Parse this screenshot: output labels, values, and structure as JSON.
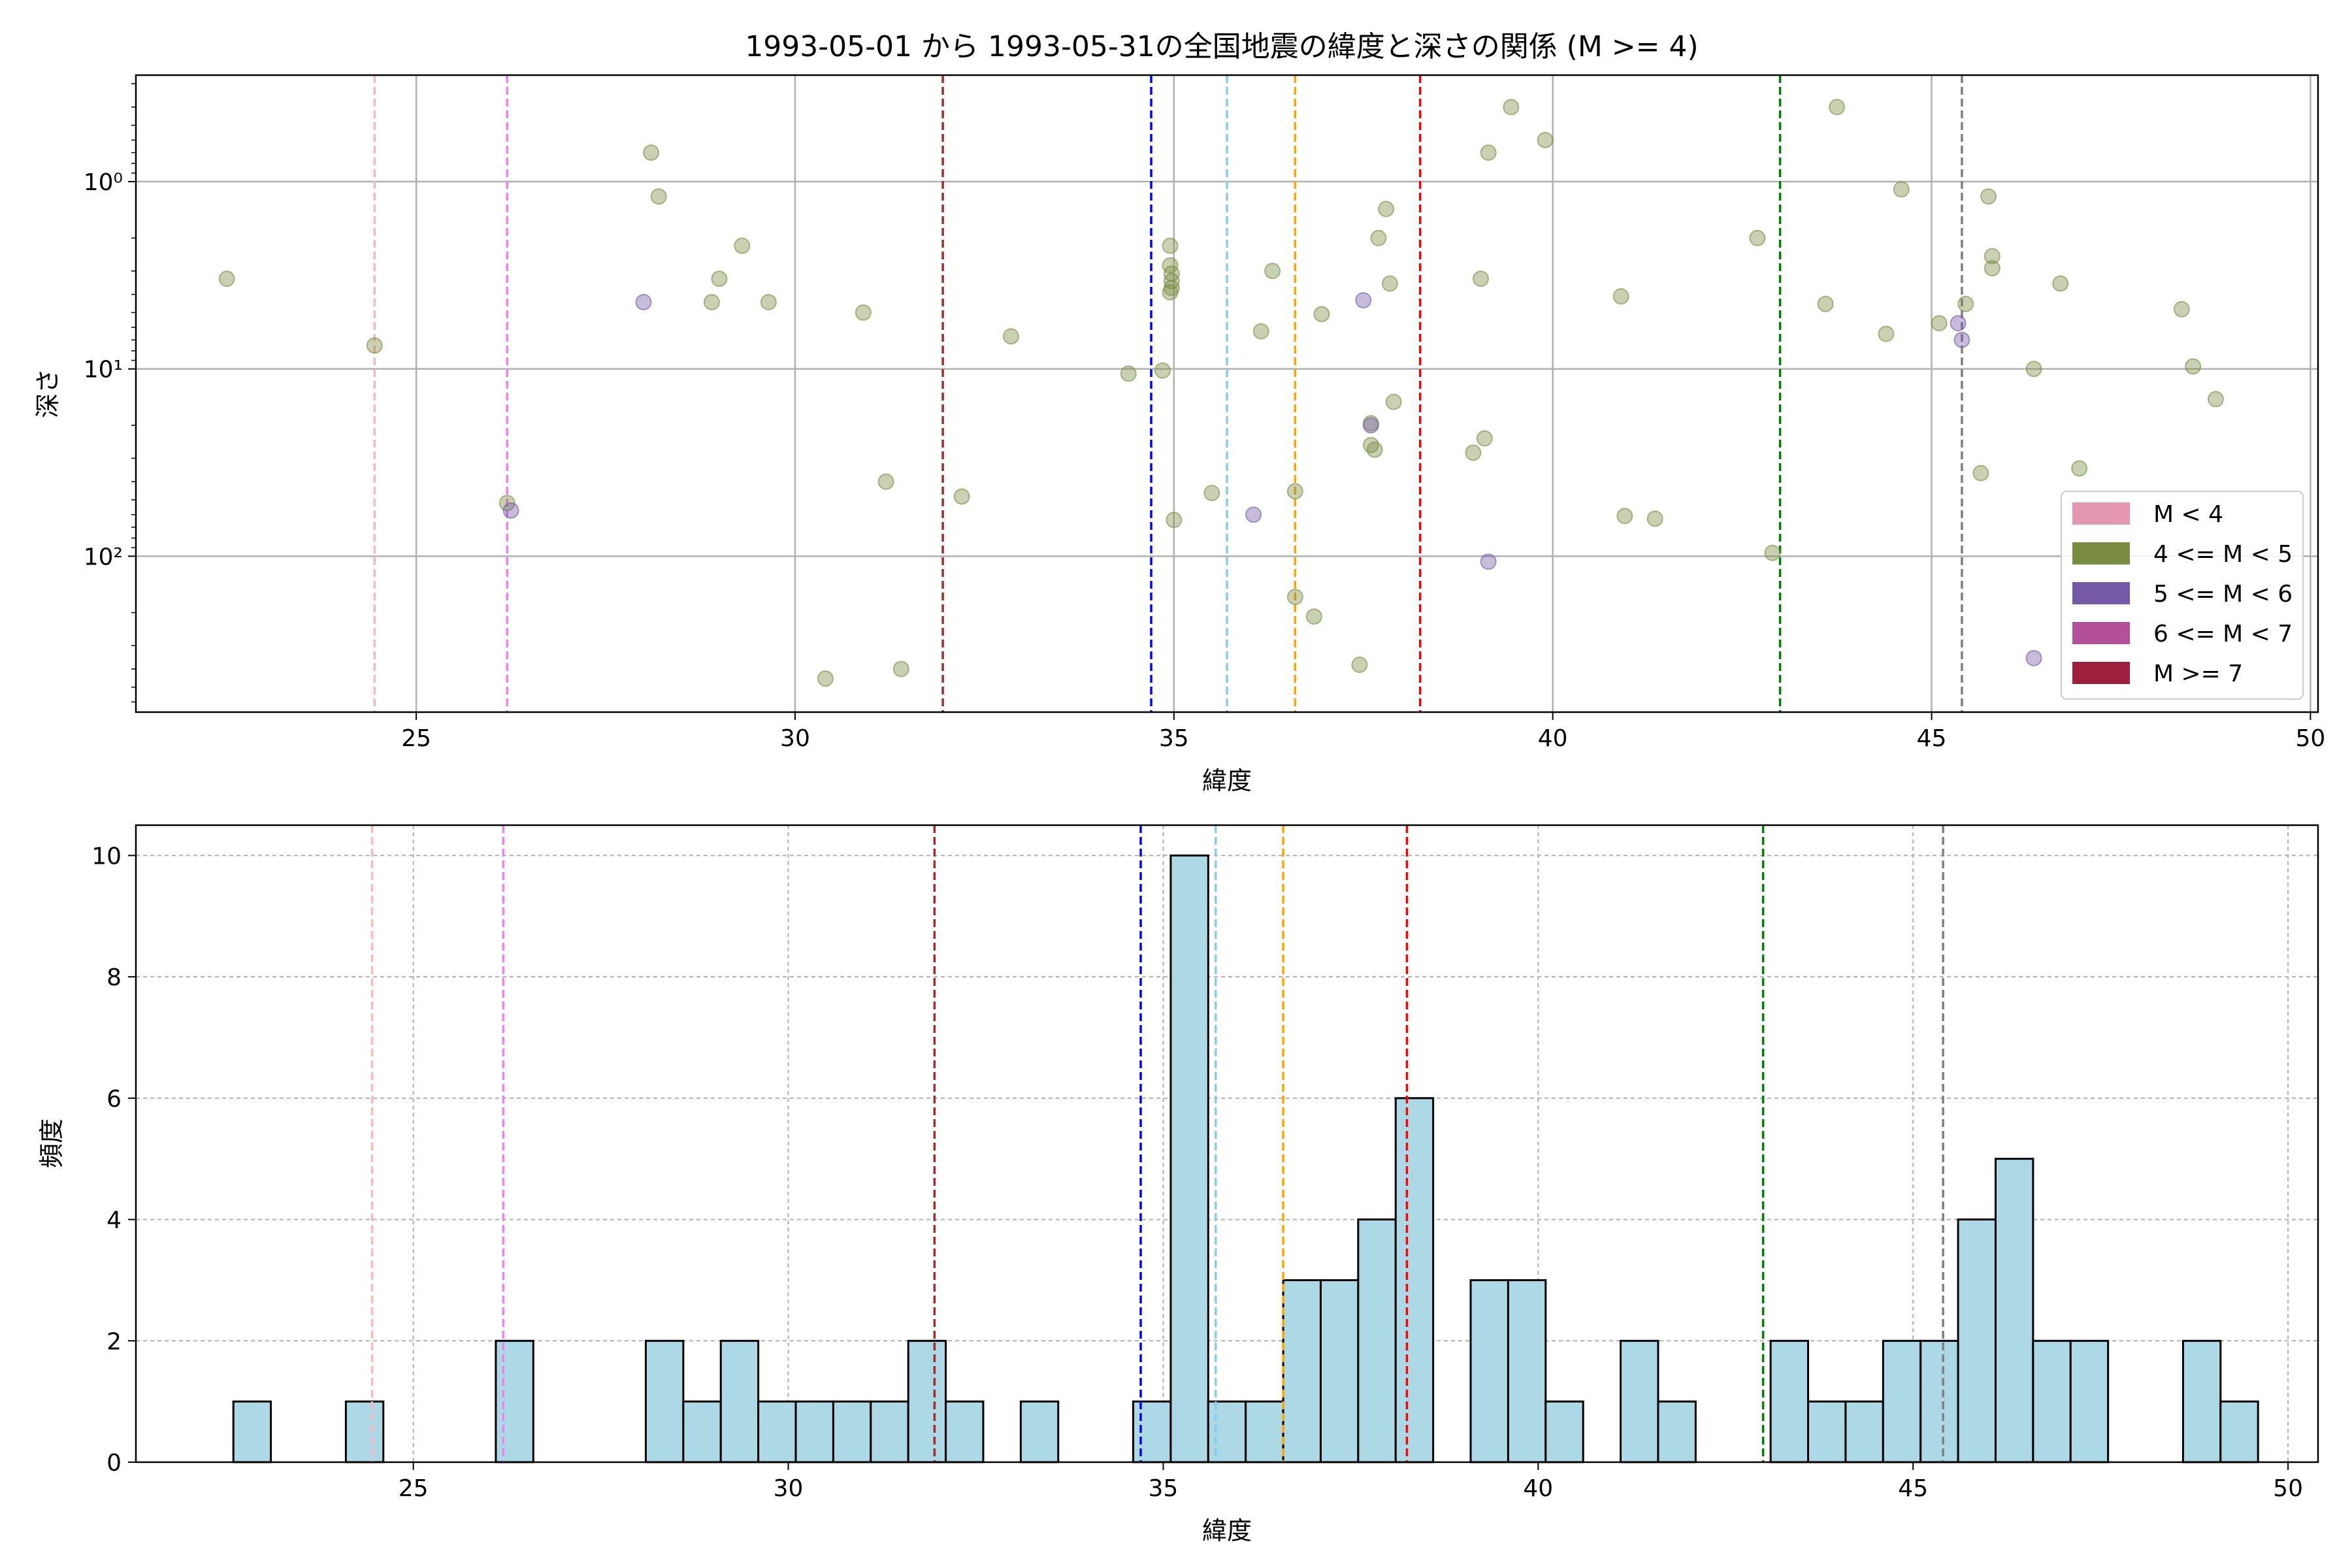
{
  "title": "1993-05-01 から 1993-05-31の全国地震の緯度と深さの関係 (M >= 4)",
  "colors": {
    "m4_5": "#7a8c42",
    "m5_6": "#7459a6",
    "lt4": "#e597b2",
    "m6_7": "#b4509a",
    "ge7": "#9e1e3e",
    "hist_fill": "#add8e6",
    "grid": "#b0b0b0"
  },
  "chart_data": [
    {
      "type": "scatter",
      "xlabel": "緯度",
      "ylabel": "深さ",
      "xlim": [
        21.3,
        50.1
      ],
      "ylim": [
        680,
        0.27
      ],
      "y_scale": "log",
      "y_inverted": true,
      "grid": true,
      "xticks": [
        25,
        30,
        35,
        40,
        45,
        50
      ],
      "yticks": [
        {
          "value": 1,
          "label": "10⁰"
        },
        {
          "value": 10,
          "label": "10¹"
        },
        {
          "value": 100,
          "label": "10²"
        }
      ],
      "legend": {
        "position": "lower-right",
        "entries": [
          {
            "label": "M < 4",
            "color_key": "lt4"
          },
          {
            "label": "4 <= M < 5",
            "color_key": "m4_5"
          },
          {
            "label": "5 <= M < 6",
            "color_key": "m5_6"
          },
          {
            "label": "6 <= M < 7",
            "color_key": "m6_7"
          },
          {
            "label": "M >= 7",
            "color_key": "ge7"
          }
        ]
      },
      "vlines": [
        {
          "x": 24.45,
          "color": "#ffb6c1"
        },
        {
          "x": 26.2,
          "color": "#ee82ee"
        },
        {
          "x": 31.95,
          "color": "#a52a2a"
        },
        {
          "x": 34.7,
          "color": "#0000ff"
        },
        {
          "x": 35.7,
          "color": "#87ceeb"
        },
        {
          "x": 36.6,
          "color": "#ffa500"
        },
        {
          "x": 38.25,
          "color": "#ff0000"
        },
        {
          "x": 43.0,
          "color": "#008000"
        },
        {
          "x": 45.4,
          "color": "#808080"
        }
      ],
      "series": [
        {
          "color_key": "m4_5",
          "points": [
            [
              22.5,
              3.3
            ],
            [
              24.45,
              7.5
            ],
            [
              26.2,
              52
            ],
            [
              28.1,
              0.7
            ],
            [
              28.2,
              1.2
            ],
            [
              28.9,
              4.4
            ],
            [
              29.0,
              3.3
            ],
            [
              29.3,
              2.2
            ],
            [
              29.65,
              4.4
            ],
            [
              30.9,
              5.0
            ],
            [
              30.4,
              450
            ],
            [
              31.2,
              40
            ],
            [
              31.4,
              400
            ],
            [
              32.2,
              48
            ],
            [
              32.85,
              6.7
            ],
            [
              34.4,
              10.6
            ],
            [
              34.85,
              10.2
            ],
            [
              34.95,
              2.2
            ],
            [
              34.95,
              2.8
            ],
            [
              34.97,
              3.1
            ],
            [
              34.97,
              3.4
            ],
            [
              34.97,
              3.7
            ],
            [
              34.95,
              3.9
            ],
            [
              35.0,
              64
            ],
            [
              35.5,
              46
            ],
            [
              36.15,
              6.3
            ],
            [
              36.3,
              3.0
            ],
            [
              36.6,
              45
            ],
            [
              36.6,
              165
            ],
            [
              36.85,
              210
            ],
            [
              36.95,
              5.1
            ],
            [
              37.45,
              380
            ],
            [
              37.6,
              19.5
            ],
            [
              37.6,
              25.5
            ],
            [
              37.65,
              27
            ],
            [
              37.7,
              2.0
            ],
            [
              37.8,
              1.4
            ],
            [
              37.85,
              3.5
            ],
            [
              37.9,
              15
            ],
            [
              38.95,
              28
            ],
            [
              39.05,
              3.3
            ],
            [
              39.1,
              23.5
            ],
            [
              39.15,
              0.7
            ],
            [
              39.45,
              0.4
            ],
            [
              39.9,
              0.6
            ],
            [
              40.9,
              4.1
            ],
            [
              40.95,
              61
            ],
            [
              41.35,
              63
            ],
            [
              42.7,
              2.0
            ],
            [
              42.9,
              96
            ],
            [
              43.6,
              4.5
            ],
            [
              43.75,
              0.4
            ],
            [
              44.4,
              6.5
            ],
            [
              44.6,
              1.1
            ],
            [
              45.1,
              5.7
            ],
            [
              45.45,
              4.5
            ],
            [
              45.65,
              36
            ],
            [
              45.75,
              1.2
            ],
            [
              45.8,
              2.9
            ],
            [
              45.8,
              2.5
            ],
            [
              46.35,
              10
            ],
            [
              46.7,
              3.5
            ],
            [
              46.95,
              34
            ],
            [
              48.3,
              4.8
            ],
            [
              48.45,
              9.7
            ],
            [
              48.75,
              14.5
            ]
          ]
        },
        {
          "color_key": "m5_6",
          "points": [
            [
              28.0,
              4.4
            ],
            [
              26.25,
              57
            ],
            [
              36.05,
              60
            ],
            [
              37.5,
              4.3
            ],
            [
              37.6,
              20
            ],
            [
              39.15,
              107
            ],
            [
              45.35,
              5.7
            ],
            [
              45.4,
              7.0
            ],
            [
              46.35,
              350
            ]
          ]
        }
      ]
    },
    {
      "type": "bar",
      "subtype": "histogram",
      "xlabel": "緯度",
      "ylabel": "頻度",
      "xlim": [
        21.3,
        50.4
      ],
      "ylim": [
        0,
        10.5
      ],
      "grid": true,
      "xticks": [
        25,
        30,
        35,
        40,
        45,
        50
      ],
      "yticks": [
        0,
        2,
        4,
        6,
        8,
        10
      ],
      "bin_start": 22.6,
      "bin_width": 0.5,
      "counts": [
        1,
        0,
        0,
        1,
        0,
        0,
        0,
        2,
        0,
        0,
        0,
        2,
        1,
        2,
        1,
        1,
        1,
        1,
        2,
        1,
        0,
        1,
        0,
        0,
        1,
        10,
        1,
        1,
        3,
        3,
        4,
        6,
        0,
        3,
        3,
        1,
        0,
        2,
        1,
        0,
        0,
        2,
        1,
        1,
        2,
        2,
        4,
        5,
        2,
        2,
        0,
        0,
        2,
        1
      ],
      "vlines": [
        {
          "x": 24.45,
          "color": "#ffb6c1"
        },
        {
          "x": 26.2,
          "color": "#ee82ee"
        },
        {
          "x": 31.95,
          "color": "#a52a2a"
        },
        {
          "x": 34.7,
          "color": "#0000ff"
        },
        {
          "x": 35.7,
          "color": "#87ceeb"
        },
        {
          "x": 36.6,
          "color": "#ffa500"
        },
        {
          "x": 38.25,
          "color": "#ff0000"
        },
        {
          "x": 43.0,
          "color": "#008000"
        },
        {
          "x": 45.4,
          "color": "#808080"
        }
      ]
    }
  ]
}
